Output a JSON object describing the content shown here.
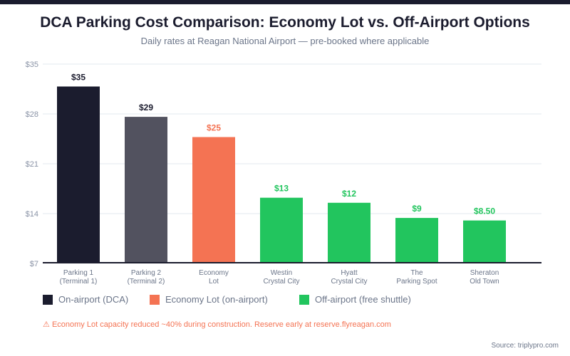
{
  "header": {
    "title": "DCA Parking Cost Comparison: Economy Lot vs. Off-Airport Options",
    "subtitle": "Daily rates at Reagan National Airport — pre-booked where applicable"
  },
  "chart_data": {
    "type": "bar",
    "title": "DCA Parking Cost Comparison: Economy Lot vs. Off-Airport Options",
    "subtitle": "Daily rates at Reagan National Airport — pre-booked where applicable",
    "xlabel": "",
    "ylabel": "",
    "y_tick_labels": [
      "$7",
      "$14",
      "$21",
      "$28",
      "$35"
    ],
    "grid": true,
    "categories": [
      [
        "Parking 1",
        "(Terminal 1)"
      ],
      [
        "Parking 2",
        "(Terminal 2)"
      ],
      [
        "Economy",
        "Lot"
      ],
      [
        "Westin",
        "Crystal City"
      ],
      [
        "Hyatt",
        "Crystal City"
      ],
      [
        "The",
        "Parking Spot"
      ],
      [
        "Sheraton",
        "Old Town"
      ]
    ],
    "values": [
      35,
      29,
      25,
      13,
      12,
      9,
      8.5
    ],
    "value_labels": [
      "$35",
      "$29",
      "$25",
      "$13",
      "$12",
      "$9",
      "$8.50"
    ],
    "groups": [
      "on-airport",
      "on-airport-2",
      "economy",
      "off-airport",
      "off-airport",
      "off-airport",
      "off-airport"
    ],
    "colors": {
      "on-airport": "#1b1c2e",
      "on-airport-2": "#52525f",
      "economy": "#f47353",
      "off-airport": "#22c55e"
    },
    "label_colors": {
      "on-airport": "#1b1c2e",
      "on-airport-2": "#1b1c2e",
      "economy": "#f47353",
      "off-airport": "#22c55e"
    },
    "legend": [
      {
        "label": "On-airport (DCA)",
        "color": "#1b1c2e"
      },
      {
        "label": "Economy Lot (on-airport)",
        "color": "#f47353"
      },
      {
        "label": "Off-airport (free shuttle)",
        "color": "#22c55e"
      }
    ],
    "legend_position": "bottom-left"
  },
  "footer": {
    "note_icon": "warning-icon",
    "note": "Economy Lot capacity reduced ~40% during construction. Reserve early at reserve.flyreagan.com",
    "source": "Source: triplypro.com"
  }
}
